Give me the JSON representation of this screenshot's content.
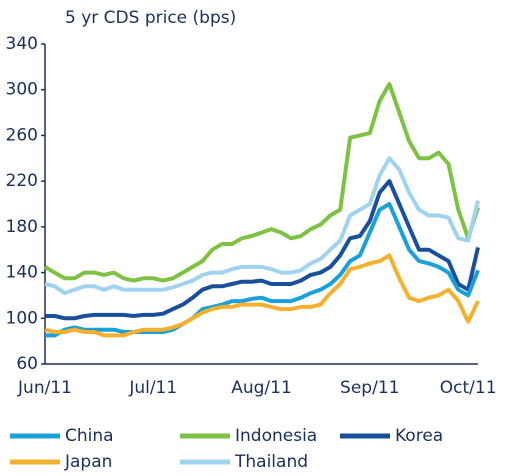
{
  "chart_data": {
    "type": "line",
    "title": "5 yr CDS price (bps)",
    "categories": [
      "Jun/11",
      null,
      null,
      null,
      null,
      null,
      null,
      null,
      null,
      null,
      null,
      "Jul/11",
      null,
      null,
      null,
      null,
      null,
      null,
      null,
      null,
      null,
      null,
      "Aug/11",
      null,
      null,
      null,
      null,
      null,
      null,
      null,
      null,
      null,
      null,
      "Sep/11",
      null,
      null,
      null,
      null,
      null,
      null,
      null,
      null,
      null,
      "Oct/11",
      null
    ],
    "series": [
      {
        "name": "Indonesia",
        "color": "#7dc242",
        "values": [
          145,
          140,
          135,
          135,
          140,
          140,
          138,
          140,
          135,
          133,
          135,
          135,
          133,
          135,
          140,
          145,
          150,
          160,
          165,
          165,
          170,
          172,
          175,
          178,
          175,
          170,
          172,
          178,
          182,
          190,
          195,
          258,
          260,
          262,
          290,
          305,
          280,
          255,
          240,
          240,
          245,
          235,
          195,
          170,
          197
        ]
      },
      {
        "name": "Thailand",
        "color": "#9fd3f0",
        "values": [
          130,
          128,
          122,
          125,
          128,
          128,
          125,
          128,
          125,
          125,
          125,
          125,
          125,
          127,
          130,
          133,
          138,
          140,
          140,
          143,
          145,
          145,
          145,
          143,
          140,
          140,
          142,
          148,
          152,
          160,
          168,
          190,
          195,
          200,
          225,
          240,
          230,
          210,
          195,
          190,
          190,
          188,
          170,
          168,
          203
        ]
      },
      {
        "name": "Korea",
        "color": "#1a4f9c",
        "values": [
          102,
          102,
          100,
          100,
          102,
          103,
          103,
          103,
          103,
          102,
          103,
          103,
          104,
          108,
          112,
          118,
          125,
          128,
          128,
          130,
          132,
          132,
          133,
          130,
          130,
          130,
          133,
          138,
          140,
          145,
          155,
          170,
          172,
          185,
          210,
          220,
          200,
          180,
          160,
          160,
          155,
          150,
          130,
          125,
          162
        ]
      },
      {
        "name": "China",
        "color": "#1aa0db",
        "values": [
          85,
          85,
          90,
          92,
          90,
          90,
          90,
          90,
          88,
          88,
          88,
          88,
          88,
          90,
          95,
          100,
          108,
          110,
          112,
          115,
          115,
          117,
          118,
          115,
          115,
          115,
          118,
          122,
          125,
          130,
          138,
          150,
          155,
          175,
          195,
          200,
          180,
          160,
          150,
          148,
          145,
          140,
          125,
          120,
          142
        ]
      },
      {
        "name": "Japan",
        "color": "#f5b12e",
        "values": [
          90,
          88,
          88,
          90,
          88,
          88,
          85,
          85,
          85,
          88,
          90,
          90,
          90,
          92,
          95,
          100,
          105,
          108,
          110,
          110,
          112,
          112,
          112,
          110,
          108,
          108,
          110,
          110,
          112,
          122,
          130,
          143,
          145,
          148,
          150,
          155,
          135,
          118,
          115,
          118,
          120,
          125,
          115,
          97,
          115
        ]
      }
    ],
    "ylim": [
      60,
      340
    ],
    "yticks": [
      60,
      100,
      140,
      180,
      220,
      260,
      300,
      340
    ]
  }
}
